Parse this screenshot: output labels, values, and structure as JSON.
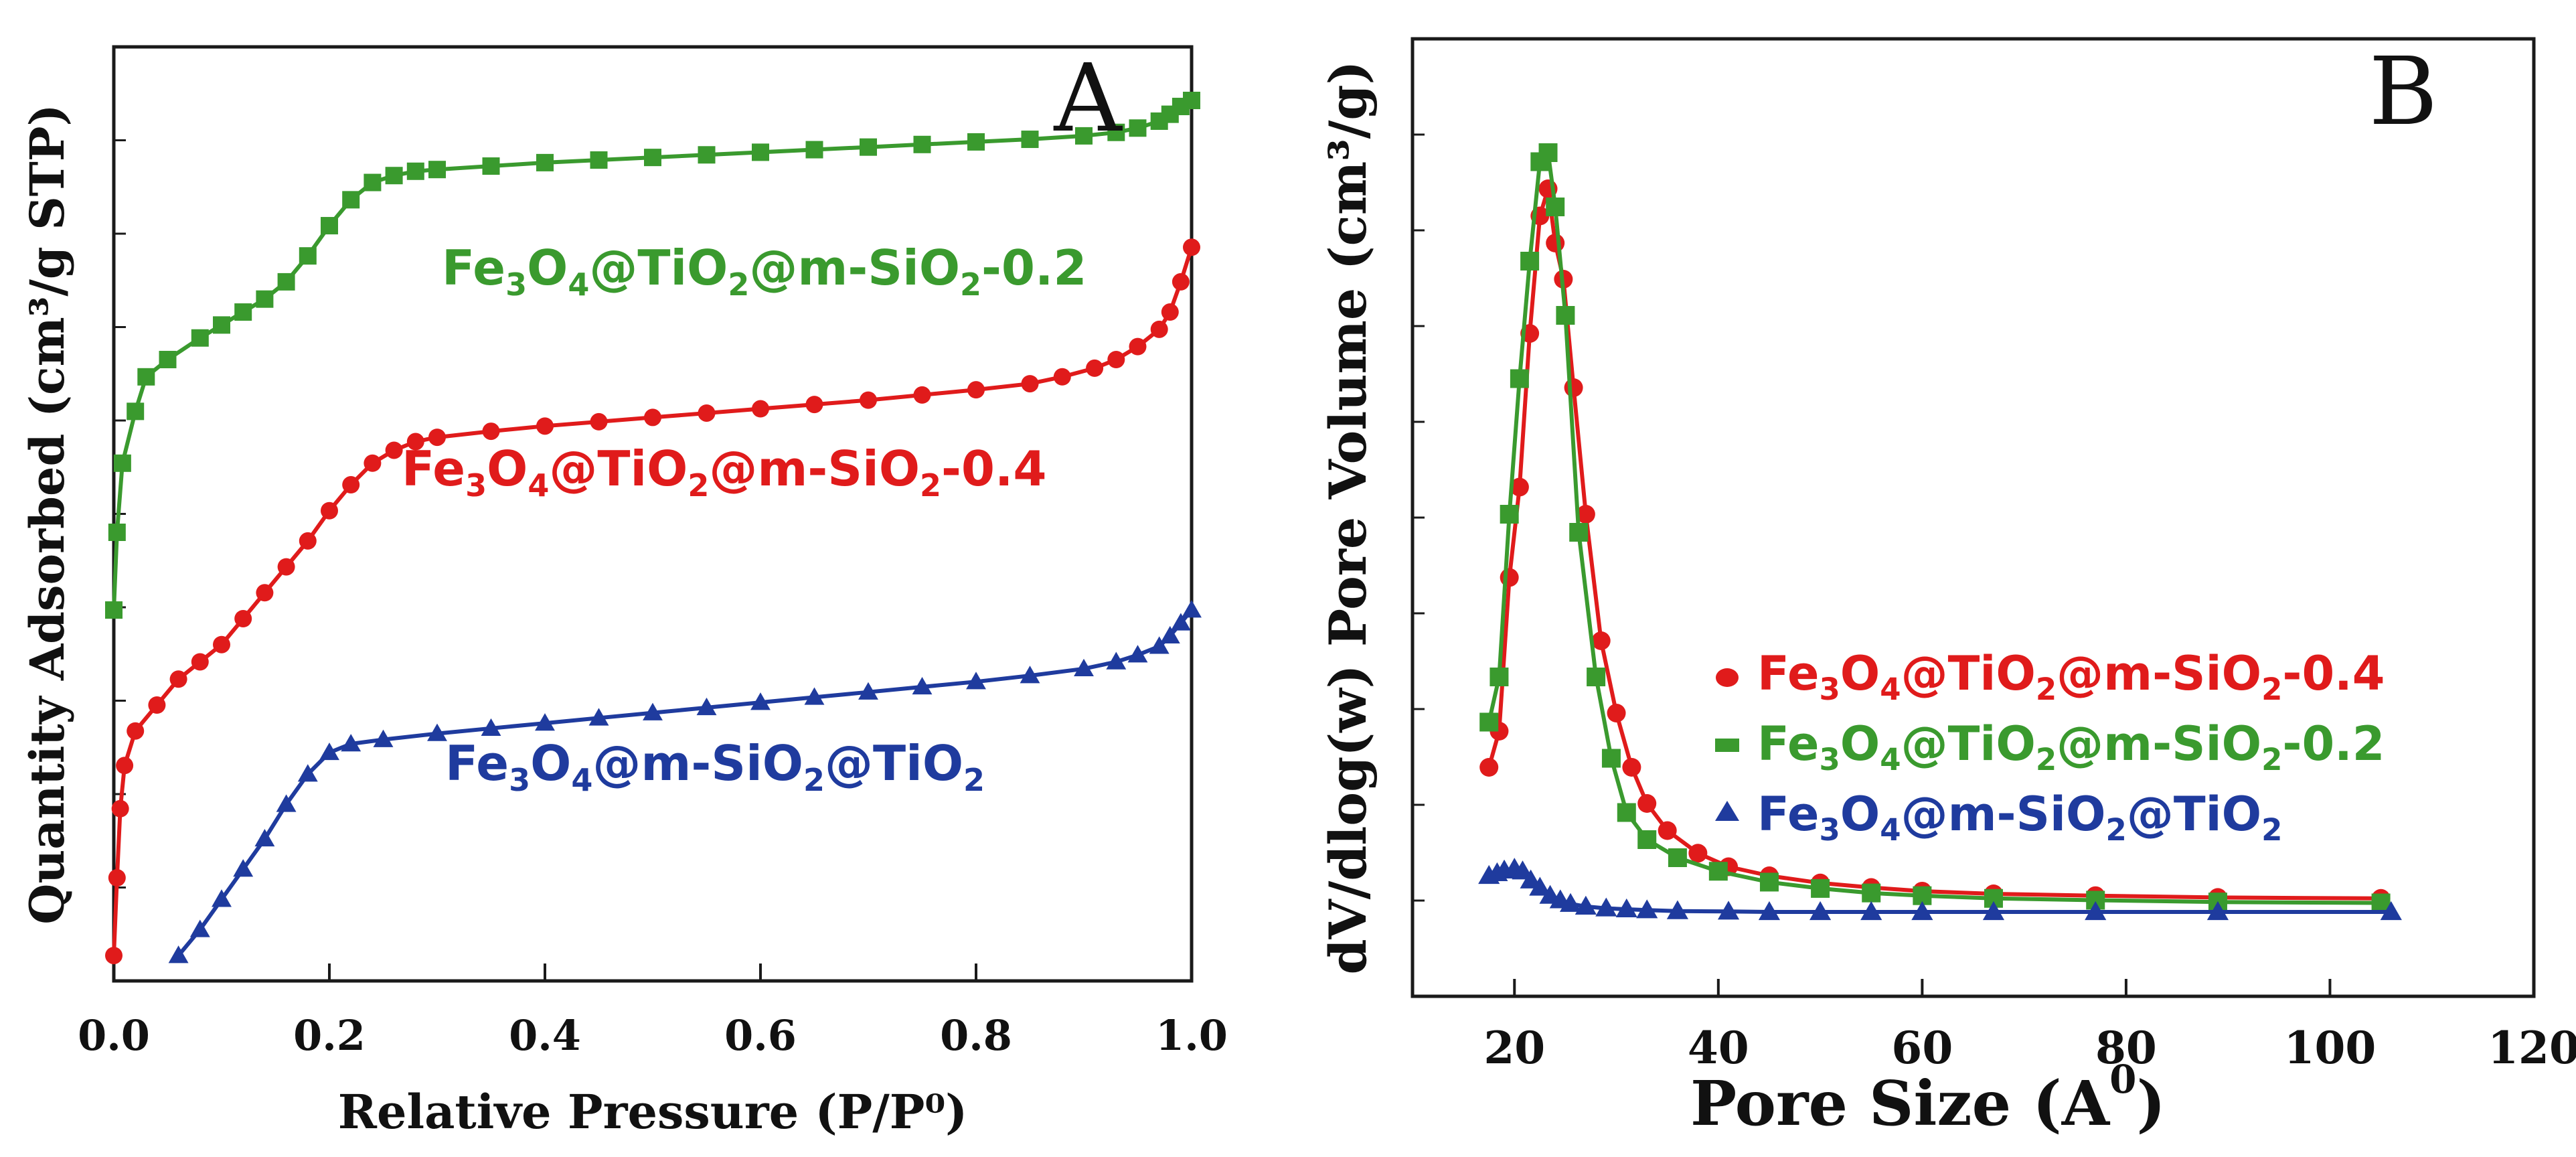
{
  "panels": {
    "A": {
      "letter": "A"
    },
    "B": {
      "letter": "B"
    }
  },
  "chart_data": [
    {
      "id": "A",
      "type": "line",
      "title": "",
      "panel_label": "A",
      "xlabel": "Relative Pressure (P/P⁰)",
      "ylabel": "Quantity Adsorbed (cm³/g STP)",
      "xlim": [
        0.0,
        1.0
      ],
      "ylim": [
        0,
        100
      ],
      "xticks": [
        "0.0",
        "0.2",
        "0.4",
        "0.6",
        "0.8",
        "1.0"
      ],
      "ytick_labels_shown": false,
      "grid": false,
      "series": [
        {
          "name": "Fe3O4@TiO2@m-SiO2-0.2",
          "label_main": "Fe",
          "label_s1": "3",
          "label_m1": "O",
          "label_s2": "4",
          "label_m2": "@TiO",
          "label_s3": "2",
          "label_m3": "@m-SiO",
          "label_s4": "2",
          "label_tail": "-0.2",
          "color": "#3a9a2e",
          "marker": "square",
          "points": [
            [
              0.0,
              41
            ],
            [
              0.003,
              50
            ],
            [
              0.008,
              58
            ],
            [
              0.02,
              64
            ],
            [
              0.03,
              68
            ],
            [
              0.05,
              70
            ],
            [
              0.08,
              72.5
            ],
            [
              0.1,
              74
            ],
            [
              0.12,
              75.5
            ],
            [
              0.14,
              77
            ],
            [
              0.16,
              79
            ],
            [
              0.18,
              82
            ],
            [
              0.2,
              85.5
            ],
            [
              0.22,
              88.5
            ],
            [
              0.24,
              90.5
            ],
            [
              0.26,
              91.3
            ],
            [
              0.28,
              91.8
            ],
            [
              0.3,
              92
            ],
            [
              0.35,
              92.4
            ],
            [
              0.4,
              92.8
            ],
            [
              0.45,
              93.1
            ],
            [
              0.5,
              93.4
            ],
            [
              0.55,
              93.7
            ],
            [
              0.6,
              94
            ],
            [
              0.65,
              94.3
            ],
            [
              0.7,
              94.6
            ],
            [
              0.75,
              94.9
            ],
            [
              0.8,
              95.2
            ],
            [
              0.85,
              95.5
            ],
            [
              0.9,
              95.9
            ],
            [
              0.93,
              96.3
            ],
            [
              0.95,
              96.8
            ],
            [
              0.97,
              97.6
            ],
            [
              0.98,
              98.4
            ],
            [
              0.99,
              99.3
            ],
            [
              1.0,
              100
            ]
          ]
        },
        {
          "name": "Fe3O4@TiO2@m-SiO2-0.4",
          "label_main": "Fe",
          "label_s1": "3",
          "label_m1": "O",
          "label_s2": "4",
          "label_m2": "@TiO",
          "label_s3": "2",
          "label_m3": "@m-SiO",
          "label_s4": "2",
          "label_tail": "-0.4",
          "color": "#e01b1b",
          "marker": "circle",
          "points": [
            [
              0.0,
              1
            ],
            [
              0.003,
              10
            ],
            [
              0.006,
              18
            ],
            [
              0.01,
              23
            ],
            [
              0.02,
              27
            ],
            [
              0.04,
              30
            ],
            [
              0.06,
              33
            ],
            [
              0.08,
              35
            ],
            [
              0.1,
              37
            ],
            [
              0.12,
              40
            ],
            [
              0.14,
              43
            ],
            [
              0.16,
              46
            ],
            [
              0.18,
              49
            ],
            [
              0.2,
              52.5
            ],
            [
              0.22,
              55.5
            ],
            [
              0.24,
              58
            ],
            [
              0.26,
              59.5
            ],
            [
              0.28,
              60.5
            ],
            [
              0.3,
              61
            ],
            [
              0.35,
              61.7
            ],
            [
              0.4,
              62.3
            ],
            [
              0.45,
              62.8
            ],
            [
              0.5,
              63.3
            ],
            [
              0.55,
              63.8
            ],
            [
              0.6,
              64.3
            ],
            [
              0.65,
              64.8
            ],
            [
              0.7,
              65.3
            ],
            [
              0.75,
              65.9
            ],
            [
              0.8,
              66.5
            ],
            [
              0.85,
              67.2
            ],
            [
              0.88,
              68
            ],
            [
              0.91,
              69
            ],
            [
              0.93,
              70
            ],
            [
              0.95,
              71.5
            ],
            [
              0.97,
              73.5
            ],
            [
              0.98,
              75.5
            ],
            [
              0.99,
              79
            ],
            [
              1.0,
              83
            ]
          ]
        },
        {
          "name": "Fe3O4@m-SiO2@TiO2",
          "label_main": "Fe",
          "label_s1": "3",
          "label_m1": "O",
          "label_s2": "4",
          "label_m2": "@m-SiO",
          "label_s3": "2",
          "label_m3": "@TiO",
          "label_s4": "2",
          "label_tail": "",
          "color": "#1f3b9e",
          "marker": "triangle",
          "points": [
            [
              0.06,
              1
            ],
            [
              0.08,
              4
            ],
            [
              0.1,
              7.5
            ],
            [
              0.12,
              11
            ],
            [
              0.14,
              14.5
            ],
            [
              0.16,
              18.5
            ],
            [
              0.18,
              22
            ],
            [
              0.2,
              24.5
            ],
            [
              0.22,
              25.5
            ],
            [
              0.25,
              26
            ],
            [
              0.3,
              26.7
            ],
            [
              0.35,
              27.3
            ],
            [
              0.4,
              27.9
            ],
            [
              0.45,
              28.5
            ],
            [
              0.5,
              29.1
            ],
            [
              0.55,
              29.7
            ],
            [
              0.6,
              30.3
            ],
            [
              0.65,
              30.9
            ],
            [
              0.7,
              31.5
            ],
            [
              0.75,
              32.1
            ],
            [
              0.8,
              32.7
            ],
            [
              0.85,
              33.4
            ],
            [
              0.9,
              34.2
            ],
            [
              0.93,
              35
            ],
            [
              0.95,
              35.8
            ],
            [
              0.97,
              36.8
            ],
            [
              0.98,
              38
            ],
            [
              0.99,
              39.5
            ],
            [
              1.0,
              41
            ]
          ]
        }
      ]
    },
    {
      "id": "B",
      "type": "line",
      "title": "",
      "panel_label": "B",
      "xlabel_main": "Pore Size (A",
      "xlabel_sup": "0",
      "xlabel_close": ")",
      "ylabel": "dV/dlog(w) Pore Volume (cm³/g)",
      "xlim": [
        10,
        120
      ],
      "ylim": [
        0,
        100
      ],
      "xticks": [
        "20",
        "40",
        "60",
        "80",
        "100",
        "120"
      ],
      "ytick_labels_shown": false,
      "grid": false,
      "legend_position": "center-right",
      "series": [
        {
          "name": "Fe3O4@TiO2@m-SiO2-0.4",
          "label_main": "Fe",
          "label_s1": "3",
          "label_m1": "O",
          "label_s2": "4",
          "label_m2": "@TiO",
          "label_s3": "2",
          "label_m3": "@m-SiO",
          "label_s4": "2",
          "label_tail": "-0.4",
          "color": "#e01b1b",
          "marker": "circle",
          "points": [
            [
              17.5,
              24
            ],
            [
              18.5,
              28
            ],
            [
              19.5,
              45
            ],
            [
              20.5,
              55
            ],
            [
              21.5,
              72
            ],
            [
              22.5,
              85
            ],
            [
              23.3,
              88
            ],
            [
              24,
              82
            ],
            [
              24.8,
              78
            ],
            [
              25.8,
              66
            ],
            [
              27,
              52
            ],
            [
              28.5,
              38
            ],
            [
              30,
              30
            ],
            [
              31.5,
              24
            ],
            [
              33,
              20
            ],
            [
              35,
              17
            ],
            [
              38,
              14.5
            ],
            [
              41,
              13
            ],
            [
              45,
              12
            ],
            [
              50,
              11.2
            ],
            [
              55,
              10.7
            ],
            [
              60,
              10.3
            ],
            [
              67,
              10
            ],
            [
              77,
              9.8
            ],
            [
              89,
              9.6
            ],
            [
              105,
              9.5
            ]
          ]
        },
        {
          "name": "Fe3O4@TiO2@m-SiO2-0.2",
          "label_main": "Fe",
          "label_s1": "3",
          "label_m1": "O",
          "label_s2": "4",
          "label_m2": "@TiO",
          "label_s3": "2",
          "label_m3": "@m-SiO",
          "label_s4": "2",
          "label_tail": "-0.2",
          "color": "#3a9a2e",
          "marker": "square",
          "points": [
            [
              17.5,
              29
            ],
            [
              18.5,
              34
            ],
            [
              19.5,
              52
            ],
            [
              20.5,
              67
            ],
            [
              21.5,
              80
            ],
            [
              22.5,
              91
            ],
            [
              23.3,
              92
            ],
            [
              24,
              86
            ],
            [
              25,
              74
            ],
            [
              26.3,
              50
            ],
            [
              28,
              34
            ],
            [
              29.5,
              25
            ],
            [
              31,
              19
            ],
            [
              33,
              16
            ],
            [
              36,
              14
            ],
            [
              40,
              12.5
            ],
            [
              45,
              11.3
            ],
            [
              50,
              10.6
            ],
            [
              55,
              10.1
            ],
            [
              60,
              9.8
            ],
            [
              67,
              9.5
            ],
            [
              77,
              9.3
            ],
            [
              89,
              9.1
            ],
            [
              105,
              9.0
            ]
          ]
        },
        {
          "name": "Fe3O4@m-SiO2@TiO2",
          "label_main": "Fe",
          "label_s1": "3",
          "label_m1": "O",
          "label_s2": "4",
          "label_m2": "@m-SiO",
          "label_s3": "2",
          "label_m3": "@TiO",
          "label_s4": "2",
          "label_tail": "",
          "color": "#1f3b9e",
          "marker": "triangle",
          "points": [
            [
              17.5,
              12
            ],
            [
              18.3,
              12.3
            ],
            [
              19,
              12.6
            ],
            [
              20,
              12.8
            ],
            [
              20.8,
              12.5
            ],
            [
              21.6,
              11.5
            ],
            [
              22.5,
              10.7
            ],
            [
              23.5,
              9.8
            ],
            [
              24.5,
              9.3
            ],
            [
              25.5,
              8.9
            ],
            [
              27,
              8.6
            ],
            [
              29,
              8.4
            ],
            [
              31,
              8.3
            ],
            [
              33,
              8.2
            ],
            [
              36,
              8.1
            ],
            [
              41,
              8.05
            ],
            [
              45,
              8
            ],
            [
              50,
              8
            ],
            [
              55,
              8
            ],
            [
              60,
              8
            ],
            [
              67,
              8
            ],
            [
              77,
              8
            ],
            [
              89,
              8
            ],
            [
              106,
              8
            ]
          ]
        }
      ]
    }
  ]
}
